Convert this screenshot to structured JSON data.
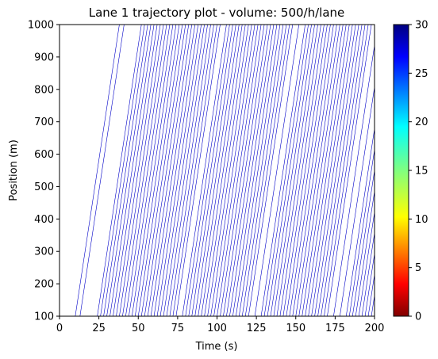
{
  "chart_data": {
    "type": "line",
    "title": "Lane 1 trajectory plot - volume: 500/h/lane",
    "xlabel": "Time (s)",
    "ylabel": "Position (m)",
    "xlim": [
      0,
      200
    ],
    "ylim": [
      100,
      1000
    ],
    "xticks": [
      "0",
      "25",
      "50",
      "75",
      "100",
      "125",
      "150",
      "175",
      "200"
    ],
    "yticks": [
      "100",
      "200",
      "300",
      "400",
      "500",
      "600",
      "700",
      "800",
      "900",
      "1000"
    ],
    "grid": false,
    "line_color": "#0000c8",
    "trajectory_duration_s": 28,
    "trajectory_entry_times_s": [
      10,
      13,
      24,
      26,
      28,
      30,
      32,
      34,
      36,
      38,
      40,
      42,
      44,
      46,
      48,
      50,
      52,
      54,
      56,
      58,
      60,
      62,
      64,
      66,
      68,
      70,
      72,
      74,
      78,
      80,
      82,
      84,
      86,
      88,
      90,
      92,
      94,
      96,
      98,
      100,
      102,
      104,
      106,
      108,
      110,
      112,
      114,
      116,
      118,
      120,
      124,
      128,
      130,
      132,
      134,
      136,
      138,
      140,
      142,
      144,
      146,
      148,
      150,
      152,
      154,
      156,
      158,
      160,
      162,
      164,
      166,
      168,
      170,
      174,
      178,
      182,
      184,
      186,
      188,
      190,
      192,
      194,
      196,
      198
    ],
    "colorbar": {
      "min": 0,
      "max": 30,
      "ticks": [
        "0",
        "5",
        "10",
        "15",
        "20",
        "25",
        "30"
      ],
      "colormap": "jet_r"
    }
  }
}
